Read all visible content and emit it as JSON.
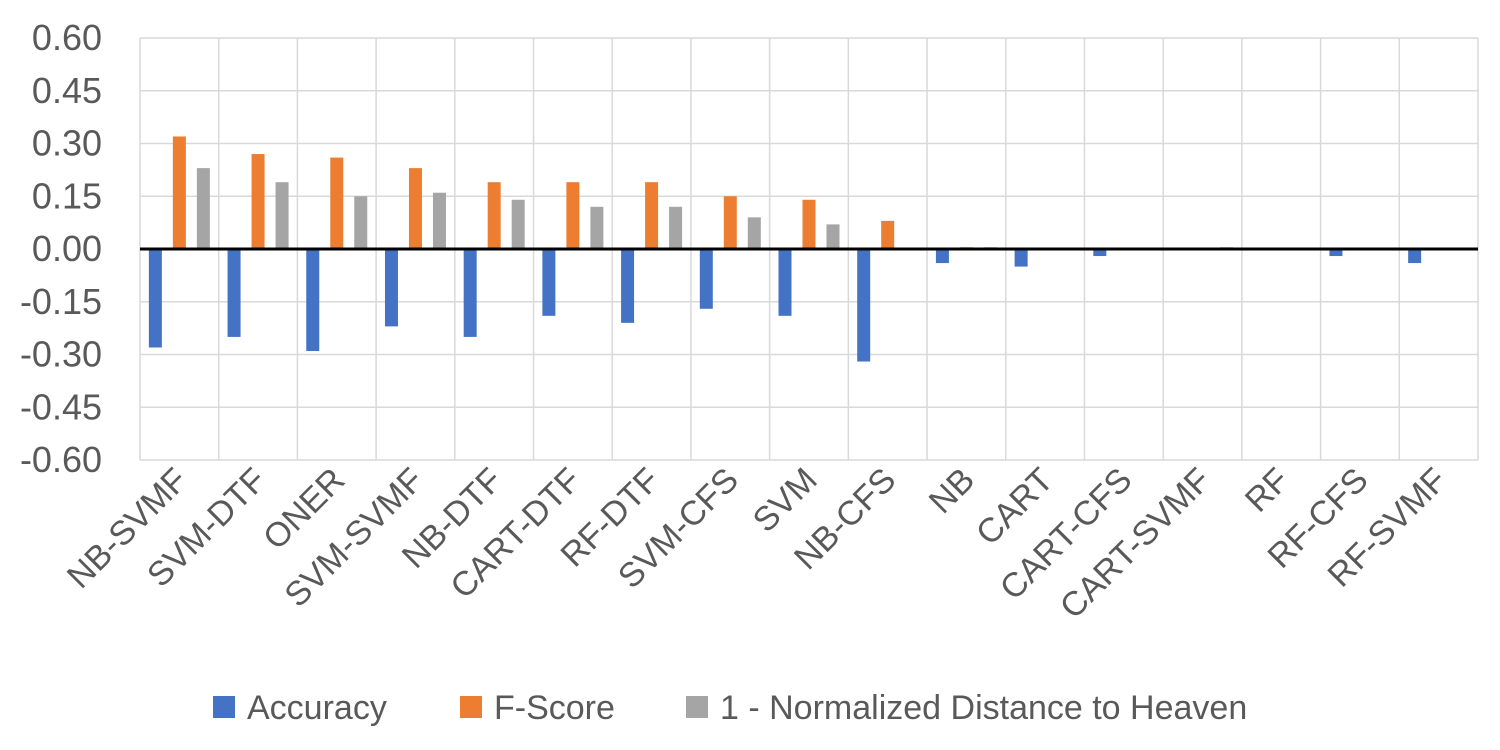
{
  "chart_data": {
    "type": "bar",
    "title": "",
    "xlabel": "",
    "ylabel": "",
    "ylim": [
      -0.6,
      0.6
    ],
    "yticks": [
      0.6,
      0.45,
      0.3,
      0.15,
      0.0,
      -0.15,
      -0.3,
      -0.45,
      -0.6
    ],
    "ytick_labels": [
      "0.60",
      "0.45",
      "0.30",
      "0.15",
      "0.00",
      "-0.15",
      "-0.30",
      "-0.45",
      "-0.60"
    ],
    "grid": true,
    "legend_position": "bottom",
    "categories": [
      "NB-SVMF",
      "SVM-DTF",
      "ONER",
      "SVM-SVMF",
      "NB-DTF",
      "CART-DTF",
      "RF-DTF",
      "SVM-CFS",
      "SVM",
      "NB-CFS",
      "NB",
      "CART",
      "CART-CFS",
      "CART-SVMF",
      "RF",
      "RF-CFS",
      "RF-SVMF"
    ],
    "series": [
      {
        "name": "Accuracy",
        "color": "#4472C4",
        "values": [
          -0.28,
          -0.25,
          -0.29,
          -0.22,
          -0.25,
          -0.19,
          -0.21,
          -0.17,
          -0.19,
          -0.32,
          -0.04,
          -0.05,
          -0.02,
          0.0,
          0.0,
          -0.02,
          -0.04
        ]
      },
      {
        "name": "F-Score",
        "color": "#ED7D31",
        "values": [
          0.32,
          0.27,
          0.26,
          0.23,
          0.19,
          0.19,
          0.19,
          0.15,
          0.14,
          0.08,
          0.005,
          0.0,
          0.0,
          0.0,
          0.0,
          0.0,
          0.0
        ]
      },
      {
        "name": "1 - Normalized Distance to Heaven",
        "color": "#A5A5A5",
        "values": [
          0.23,
          0.19,
          0.15,
          0.16,
          0.14,
          0.12,
          0.12,
          0.09,
          0.07,
          0.0,
          0.005,
          0.0,
          0.0,
          0.005,
          0.0,
          0.0,
          0.0
        ]
      }
    ]
  }
}
